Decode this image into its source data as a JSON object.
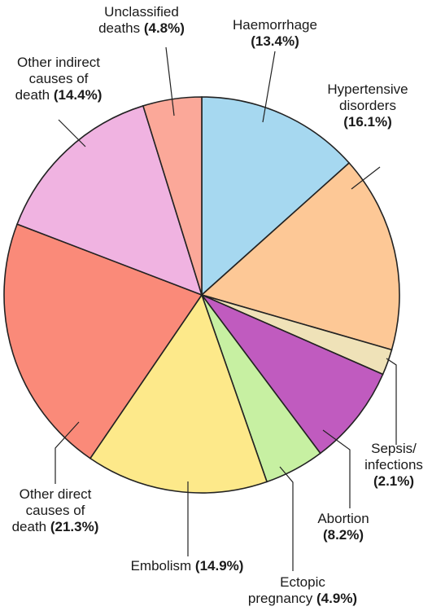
{
  "chart_data": {
    "type": "pie",
    "title": "",
    "start_angle_deg": 0,
    "direction": "clockwise",
    "slices": [
      {
        "name": "Haemorrhage",
        "value": 13.4,
        "color": "#a6d8f0",
        "label_lines": [
          "Haemorrhage"
        ],
        "pct_text": "(13.4%)"
      },
      {
        "name": "Hypertensive disorders",
        "value": 16.1,
        "color": "#fdc896",
        "label_lines": [
          "Hypertensive",
          "disorders"
        ],
        "pct_text": "(16.1%)"
      },
      {
        "name": "Sepsis/ infections",
        "value": 2.1,
        "color": "#efe2b8",
        "label_lines": [
          "Sepsis/",
          "infections"
        ],
        "pct_text": "(2.1%)"
      },
      {
        "name": "Abortion",
        "value": 8.2,
        "color": "#c05bbf",
        "label_lines": [
          "Abortion"
        ],
        "pct_text": "(8.2%)"
      },
      {
        "name": "Ectopic pregnancy",
        "value": 4.9,
        "color": "#c7f0a2",
        "label_lines": [
          "Ectopic",
          "pregnancy"
        ],
        "pct_text": "(4.9%)"
      },
      {
        "name": "Embolism",
        "value": 14.9,
        "color": "#fde98a",
        "label_lines": [
          "Embolism"
        ],
        "pct_text": "(14.9%)"
      },
      {
        "name": "Other direct causes of death",
        "value": 21.3,
        "color": "#fa8a79",
        "label_lines": [
          "Other direct",
          "causes of",
          "death"
        ],
        "pct_text": "(21.3%)"
      },
      {
        "name": "Other indirect causes of death",
        "value": 14.4,
        "color": "#f0b3e1",
        "label_lines": [
          "Other indirect",
          "causes of",
          "death"
        ],
        "pct_text": "(14.4%)"
      },
      {
        "name": "Unclassified deaths",
        "value": 4.8,
        "color": "#fba899",
        "label_lines": [
          "Unclassified",
          "deaths"
        ],
        "pct_text": "(4.8%)"
      }
    ]
  }
}
